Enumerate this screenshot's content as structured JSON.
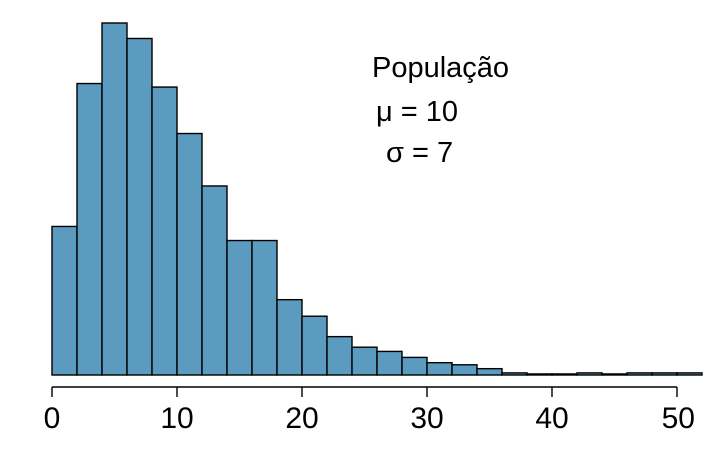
{
  "chart_data": {
    "type": "bar",
    "subtype": "histogram",
    "title": "",
    "xlabel": "",
    "ylabel": "",
    "xlim": [
      0,
      52
    ],
    "ylim": [
      0,
      100
    ],
    "y_axis_shown": false,
    "grid": false,
    "bin_width": 2,
    "bin_edges": [
      0,
      2,
      4,
      6,
      8,
      10,
      12,
      14,
      16,
      18,
      20,
      22,
      24,
      26,
      28,
      30,
      32,
      34,
      36,
      38,
      40,
      42,
      44,
      46,
      48,
      50,
      52
    ],
    "values": [
      42.2,
      82.8,
      100,
      95.6,
      81.8,
      68.6,
      53.7,
      38.2,
      38.2,
      21.4,
      16.7,
      10.9,
      7.9,
      6.7,
      5.0,
      3.5,
      2.9,
      1.8,
      0.6,
      0.3,
      0.3,
      0.6,
      0.3,
      0.6,
      0.6,
      0.6
    ],
    "xticks": [
      "0",
      "10",
      "20",
      "30",
      "40",
      "50"
    ],
    "xtick_values": [
      0,
      10,
      20,
      30,
      40,
      50
    ],
    "bar_color": "#5b9bbf",
    "bar_edge_color": "#000000",
    "annotations": [
      {
        "text": "População"
      },
      {
        "text": "μ = 10"
      },
      {
        "text": "σ = 7"
      }
    ]
  }
}
